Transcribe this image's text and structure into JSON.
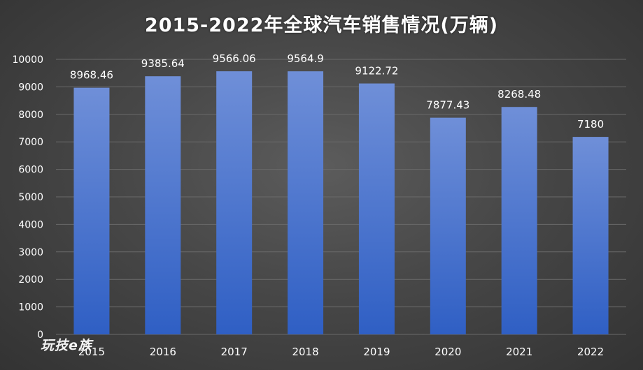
{
  "chart_data": {
    "type": "bar",
    "title": "2015-2022年全球汽车销售情况(万辆)",
    "categories": [
      "2015",
      "2016",
      "2017",
      "2018",
      "2019",
      "2020",
      "2021",
      "2022"
    ],
    "values": [
      8968.46,
      9385.64,
      9566.06,
      9564.9,
      9122.72,
      7877.43,
      8268.48,
      7180
    ],
    "value_labels": [
      "8968.46",
      "9385.64",
      "9566.06",
      "9564.9",
      "9122.72",
      "7877.43",
      "8268.48",
      "7180"
    ],
    "ylim": [
      0,
      10000
    ],
    "yticks": [
      0,
      1000,
      2000,
      3000,
      4000,
      5000,
      6000,
      7000,
      8000,
      9000,
      10000
    ],
    "grid": true,
    "legend": "none",
    "colors": {
      "bar_top": "#6f8fd8",
      "bar_bottom": "#2f5fc4",
      "text": "#ffffff",
      "grid": "#6a6a6a"
    }
  },
  "watermark": "玩技e族"
}
